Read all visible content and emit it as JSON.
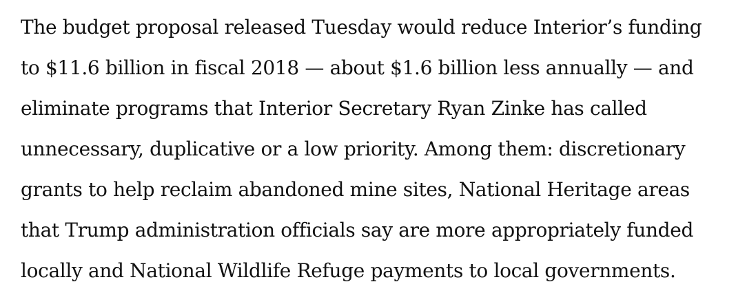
{
  "article": {
    "paragraph_lines": [
      "The budget proposal released Tuesday would reduce Interior’s funding",
      "to $11.6 billion in fiscal 2018 — about $1.6 billion less annually — and",
      "eliminate programs that Interior Secretary Ryan Zinke has called",
      "unnecessary, duplicative or a low priority. Among them: discretionary",
      "grants to help reclaim abandoned mine sites, National Heritage areas",
      "that Trump administration officials say are more appropriately funded",
      "locally and National Wildlife Refuge payments to local governments."
    ]
  },
  "colors": {
    "background": "#ffffff",
    "text": "#111111"
  }
}
